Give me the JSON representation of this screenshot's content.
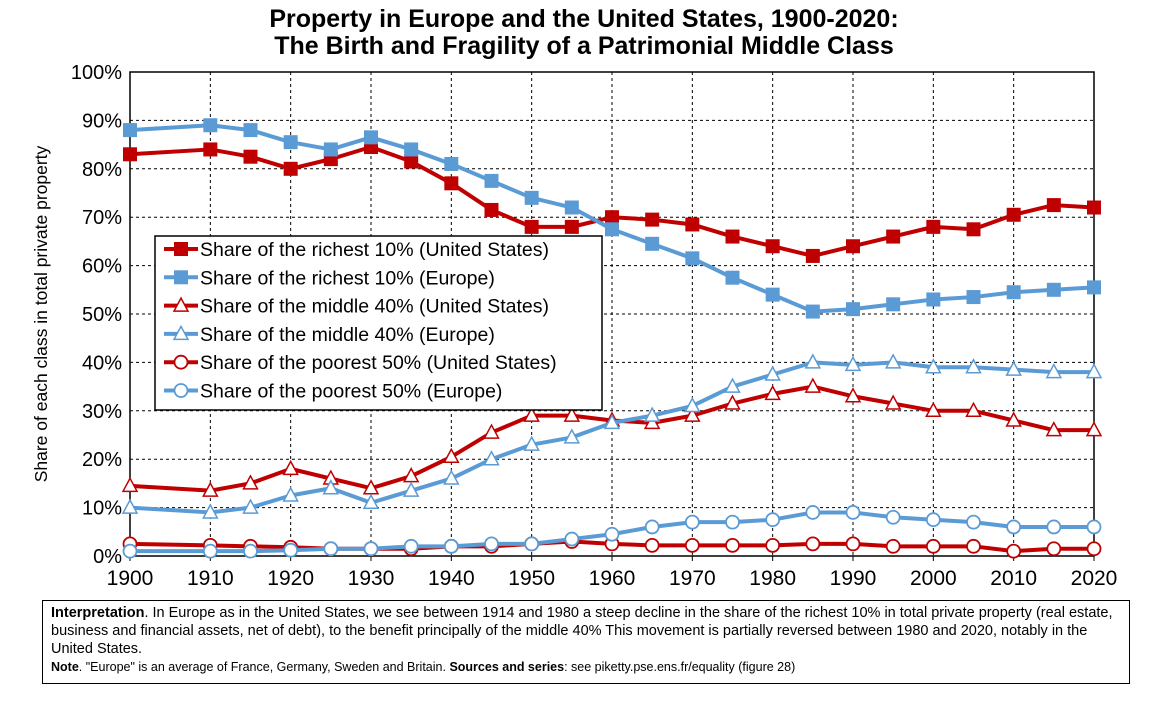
{
  "chart_data": {
    "type": "line",
    "title_line1": "Property in Europe and the United States, 1900-2020:",
    "title_line2": "The Birth and Fragility of a Patrimonial Middle Class",
    "ylabel": "Share of each class in total private property",
    "xlabel": "",
    "xlim": [
      1900,
      2020
    ],
    "ylim": [
      0,
      100
    ],
    "x_ticks": [
      1900,
      1910,
      1920,
      1930,
      1940,
      1950,
      1960,
      1970,
      1980,
      1990,
      2000,
      2010,
      2020
    ],
    "y_ticks": [
      "0%",
      "10%",
      "20%",
      "30%",
      "40%",
      "50%",
      "60%",
      "70%",
      "80%",
      "90%",
      "100%"
    ],
    "grid": true,
    "legend_position": "center-left",
    "x": [
      1900,
      1910,
      1915,
      1920,
      1925,
      1930,
      1935,
      1940,
      1945,
      1950,
      1955,
      1960,
      1965,
      1970,
      1975,
      1980,
      1985,
      1990,
      1995,
      2000,
      2005,
      2010,
      2015,
      2020
    ],
    "series": [
      {
        "name": "Share of the richest 10% (United States)",
        "color": "#c00000",
        "marker": "square-filled",
        "values": [
          83,
          84,
          82.5,
          80,
          82,
          84.5,
          81.5,
          77,
          71.5,
          68,
          68,
          70,
          69.5,
          68.5,
          66,
          64,
          62,
          64,
          66,
          68,
          67.5,
          70.5,
          72.5,
          72
        ]
      },
      {
        "name": "Share of the richest 10% (Europe)",
        "color": "#5b9bd5",
        "marker": "square-filled",
        "values": [
          88,
          89,
          88,
          85.5,
          84,
          86.5,
          84,
          81,
          77.5,
          74,
          72,
          67.5,
          64.5,
          61.5,
          57.5,
          54,
          50.5,
          51,
          52,
          53,
          53.5,
          54.5,
          55,
          55.5
        ]
      },
      {
        "name": "Share of the middle 40% (United States)",
        "color": "#c00000",
        "marker": "triangle-open",
        "values": [
          14.5,
          13.5,
          15,
          18,
          16,
          14,
          16.5,
          20.5,
          25.5,
          29,
          29,
          28,
          27.5,
          29,
          31.5,
          33.5,
          35,
          33,
          31.5,
          30,
          30,
          28,
          26,
          26
        ]
      },
      {
        "name": "Share of the middle 40% (Europe)",
        "color": "#5b9bd5",
        "marker": "triangle-open",
        "values": [
          10,
          9,
          10,
          12.5,
          14,
          11,
          13.5,
          16,
          20,
          23,
          24.5,
          27.5,
          29,
          31,
          35,
          37.5,
          40,
          39.5,
          40,
          39,
          39,
          38.5,
          38,
          38
        ]
      },
      {
        "name": "Share of the poorest 50% (United States)",
        "color": "#c00000",
        "marker": "circle-open",
        "values": [
          2.5,
          2.2,
          2,
          1.8,
          1.5,
          1.5,
          1.5,
          2,
          2,
          2.5,
          3,
          2.5,
          2.2,
          2.2,
          2.2,
          2.2,
          2.5,
          2.5,
          2,
          2,
          2,
          1,
          1.5,
          1.5
        ]
      },
      {
        "name": "Share of the poorest 50% (Europe)",
        "color": "#5b9bd5",
        "marker": "circle-open",
        "values": [
          1,
          1,
          1,
          1.2,
          1.5,
          1.5,
          2,
          2,
          2.5,
          2.5,
          3.5,
          4.5,
          6,
          7,
          7,
          7.5,
          9,
          9,
          8,
          7.5,
          7,
          6,
          6,
          6
        ]
      }
    ]
  },
  "notes": {
    "interp_label": "Interpretation",
    "interp_text": ". In Europe as in the United States, we see between 1914 and 1980 a steep decline in the share of the richest 10% in total private property (real estate, business and financial assets, net of debt), to the benefit principally of the middle 40% This movement is partially reversed between 1980 and 2020, notably in the United States.",
    "note_label": "Note",
    "note_text": ". \"Europe\" is an average of France, Germany, Sweden and Britain. ",
    "sources_label": "Sources and series",
    "sources_text": ": see piketty.pse.ens.fr/equality (figure 28)"
  }
}
